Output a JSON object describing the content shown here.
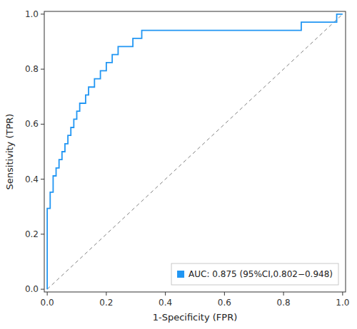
{
  "chart_data": {
    "type": "step",
    "xlabel": "1-Specificity (FPR)",
    "ylabel": "Sensitivity (TPR)",
    "x": [
      0.0,
      0.0,
      0.0,
      0.0,
      0.01,
      0.01,
      0.02,
      0.02,
      0.03,
      0.03,
      0.04,
      0.04,
      0.05,
      0.05,
      0.06,
      0.06,
      0.07,
      0.07,
      0.08,
      0.08,
      0.09,
      0.09,
      0.1,
      0.1,
      0.11,
      0.11,
      0.12,
      0.13,
      0.14,
      0.15,
      0.16,
      0.17,
      0.18,
      0.19,
      0.2,
      0.21,
      0.22,
      0.23,
      0.24,
      0.25,
      0.26,
      0.27,
      0.28,
      0.29,
      0.3,
      0.31,
      0.32,
      0.33,
      0.35,
      0.4,
      0.5,
      0.6,
      0.7,
      0.8,
      0.84,
      0.86,
      0.88,
      0.9,
      0.92,
      0.94,
      0.96,
      0.98,
      1.0
    ],
    "series": [
      {
        "name": "AUC: 0.875 (95%CI,0.802−0.948)",
        "color": "#2196F3",
        "values": [
          0.0,
          0.05,
          0.15,
          0.294,
          0.294,
          0.353,
          0.353,
          0.412,
          0.412,
          0.441,
          0.441,
          0.471,
          0.471,
          0.5,
          0.5,
          0.529,
          0.529,
          0.559,
          0.559,
          0.588,
          0.588,
          0.618,
          0.618,
          0.647,
          0.647,
          0.676,
          0.676,
          0.706,
          0.735,
          0.735,
          0.765,
          0.765,
          0.794,
          0.794,
          0.824,
          0.824,
          0.853,
          0.853,
          0.882,
          0.882,
          0.882,
          0.882,
          0.882,
          0.912,
          0.912,
          0.912,
          0.941,
          0.941,
          0.941,
          0.941,
          0.941,
          0.941,
          0.941,
          0.941,
          0.941,
          0.971,
          0.971,
          0.971,
          0.971,
          0.971,
          0.971,
          1.0,
          1.0
        ]
      }
    ],
    "diagonal": {
      "x": [
        0,
        1
      ],
      "values": [
        0,
        1
      ],
      "color": "#808080",
      "line_style": "dashed"
    },
    "xlim": [
      -0.01,
      1.01
    ],
    "ylim": [
      -0.01,
      1.01
    ],
    "xticks": [
      {
        "value": 0.0,
        "label": "0.0"
      },
      0.2,
      0.4,
      0.6,
      0.8,
      {
        "value": 1.0,
        "label": "1.0"
      }
    ],
    "yticks": [
      {
        "value": 0.0,
        "label": "0.0"
      },
      0.2,
      0.4,
      0.6,
      0.8,
      {
        "value": 1.0,
        "label": "1.0"
      }
    ],
    "legend": "lower right",
    "grid": false
  }
}
